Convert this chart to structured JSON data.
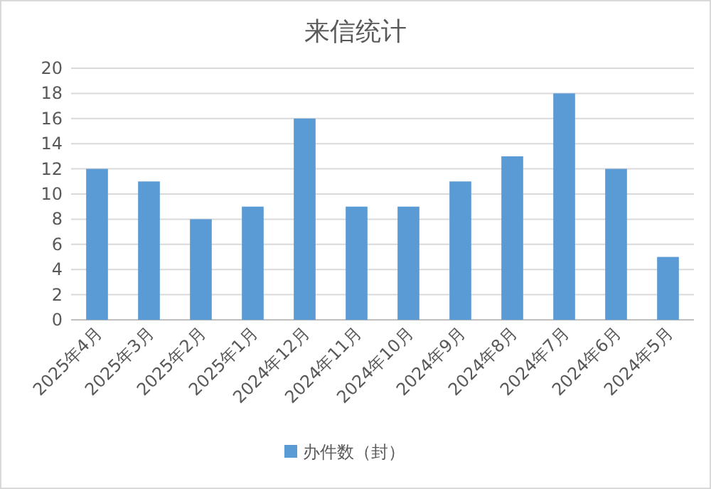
{
  "chart_data": {
    "type": "bar",
    "title": "来信统计",
    "categories": [
      "2025年4月",
      "2025年3月",
      "2025年2月",
      "2025年1月",
      "2024年12月",
      "2024年11月",
      "2024年10月",
      "2024年9月",
      "2024年8月",
      "2024年7月",
      "2024年6月",
      "2024年5月"
    ],
    "series": [
      {
        "name": "办件数（封）",
        "color": "#5b9bd5",
        "values": [
          12,
          11,
          8,
          9,
          16,
          9,
          9,
          11,
          13,
          18,
          12,
          5
        ]
      }
    ],
    "ylim": [
      0,
      20
    ],
    "yticks": [
      0,
      2,
      4,
      6,
      8,
      10,
      12,
      14,
      16,
      18,
      20
    ],
    "grid": "y",
    "legend": "bottom"
  }
}
